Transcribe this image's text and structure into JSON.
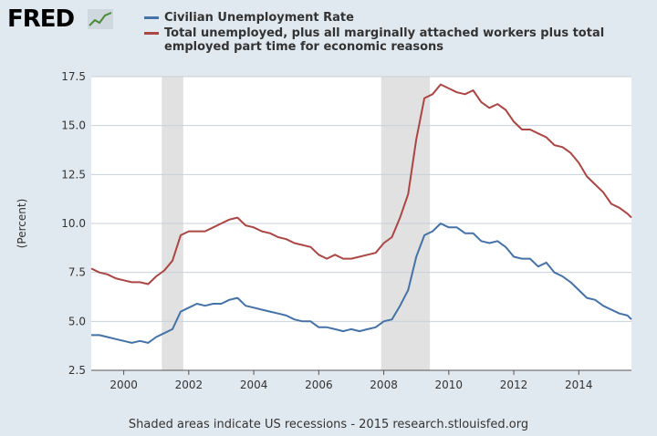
{
  "logo": {
    "text": "FRED"
  },
  "footer": {
    "note": "Shaded areas indicate US recessions - 2015 research.stlouisfed.org"
  },
  "chart_data": {
    "type": "line",
    "title": "",
    "xlabel": "",
    "ylabel": "(Percent)",
    "xlim": [
      1999.0,
      2015.62
    ],
    "ylim": [
      2.5,
      17.5
    ],
    "yticks": [
      2.5,
      5.0,
      7.5,
      10.0,
      12.5,
      15.0,
      17.5
    ],
    "ytick_labels": [
      "2.5",
      "5.0",
      "7.5",
      "10.0",
      "12.5",
      "15.0",
      "17.5"
    ],
    "xticks": [
      2000,
      2002,
      2004,
      2006,
      2008,
      2010,
      2012,
      2014
    ],
    "xtick_labels": [
      "2000",
      "2002",
      "2004",
      "2006",
      "2008",
      "2010",
      "2012",
      "2014"
    ],
    "grid": "horizontal",
    "legend_position": "top",
    "recessions": [
      [
        2001.17,
        2001.83
      ],
      [
        2007.92,
        2009.42
      ]
    ],
    "series": [
      {
        "name": "Civilian Unemployment Rate",
        "color": "#4572a7",
        "x": [
          1999.0,
          1999.25,
          1999.5,
          1999.75,
          2000.0,
          2000.25,
          2000.5,
          2000.75,
          2001.0,
          2001.25,
          2001.5,
          2001.75,
          2002.0,
          2002.25,
          2002.5,
          2002.75,
          2003.0,
          2003.25,
          2003.5,
          2003.75,
          2004.0,
          2004.25,
          2004.5,
          2004.75,
          2005.0,
          2005.25,
          2005.5,
          2005.75,
          2006.0,
          2006.25,
          2006.5,
          2006.75,
          2007.0,
          2007.25,
          2007.5,
          2007.75,
          2008.0,
          2008.25,
          2008.5,
          2008.75,
          2009.0,
          2009.25,
          2009.5,
          2009.75,
          2010.0,
          2010.25,
          2010.5,
          2010.75,
          2011.0,
          2011.25,
          2011.5,
          2011.75,
          2012.0,
          2012.25,
          2012.5,
          2012.75,
          2013.0,
          2013.25,
          2013.5,
          2013.75,
          2014.0,
          2014.25,
          2014.5,
          2014.75,
          2015.0,
          2015.25,
          2015.5,
          2015.62
        ],
        "values": [
          4.3,
          4.3,
          4.2,
          4.1,
          4.0,
          3.9,
          4.0,
          3.9,
          4.2,
          4.4,
          4.6,
          5.5,
          5.7,
          5.9,
          5.8,
          5.9,
          5.9,
          6.1,
          6.2,
          5.8,
          5.7,
          5.6,
          5.5,
          5.4,
          5.3,
          5.1,
          5.0,
          5.0,
          4.7,
          4.7,
          4.6,
          4.5,
          4.6,
          4.5,
          4.6,
          4.7,
          5.0,
          5.1,
          5.8,
          6.6,
          8.3,
          9.4,
          9.6,
          10.0,
          9.8,
          9.8,
          9.5,
          9.5,
          9.1,
          9.0,
          9.1,
          8.8,
          8.3,
          8.2,
          8.2,
          7.8,
          8.0,
          7.5,
          7.3,
          7.0,
          6.6,
          6.2,
          6.1,
          5.8,
          5.6,
          5.4,
          5.3,
          5.1
        ]
      },
      {
        "name": "Total unemployed, plus all marginally attached workers plus total employed part time for economic reasons",
        "color": "#aa4643",
        "x": [
          1999.0,
          1999.25,
          1999.5,
          1999.75,
          2000.0,
          2000.25,
          2000.5,
          2000.75,
          2001.0,
          2001.25,
          2001.5,
          2001.75,
          2002.0,
          2002.25,
          2002.5,
          2002.75,
          2003.0,
          2003.25,
          2003.5,
          2003.75,
          2004.0,
          2004.25,
          2004.5,
          2004.75,
          2005.0,
          2005.25,
          2005.5,
          2005.75,
          2006.0,
          2006.25,
          2006.5,
          2006.75,
          2007.0,
          2007.25,
          2007.5,
          2007.75,
          2008.0,
          2008.25,
          2008.5,
          2008.75,
          2009.0,
          2009.25,
          2009.5,
          2009.75,
          2010.0,
          2010.25,
          2010.5,
          2010.75,
          2011.0,
          2011.25,
          2011.5,
          2011.75,
          2012.0,
          2012.25,
          2012.5,
          2012.75,
          2013.0,
          2013.25,
          2013.5,
          2013.75,
          2014.0,
          2014.25,
          2014.5,
          2014.75,
          2015.0,
          2015.25,
          2015.5,
          2015.62
        ],
        "values": [
          7.7,
          7.5,
          7.4,
          7.2,
          7.1,
          7.0,
          7.0,
          6.9,
          7.3,
          7.6,
          8.1,
          9.4,
          9.6,
          9.6,
          9.6,
          9.8,
          10.0,
          10.2,
          10.3,
          9.9,
          9.8,
          9.6,
          9.5,
          9.3,
          9.2,
          9.0,
          8.9,
          8.8,
          8.4,
          8.2,
          8.4,
          8.2,
          8.2,
          8.3,
          8.4,
          8.5,
          9.0,
          9.3,
          10.3,
          11.5,
          14.3,
          16.4,
          16.6,
          17.1,
          16.9,
          16.7,
          16.6,
          16.8,
          16.2,
          15.9,
          16.1,
          15.8,
          15.2,
          14.8,
          14.8,
          14.6,
          14.4,
          14.0,
          13.9,
          13.6,
          13.1,
          12.4,
          12.0,
          11.6,
          11.0,
          10.8,
          10.5,
          10.3
        ]
      }
    ]
  }
}
